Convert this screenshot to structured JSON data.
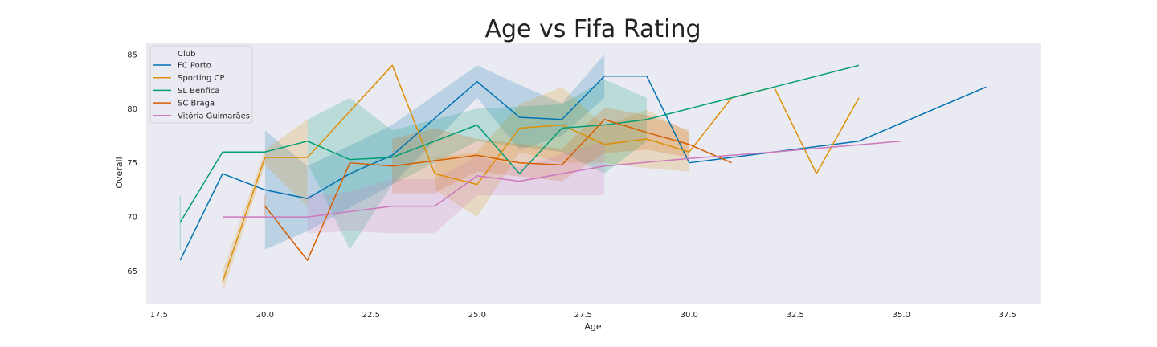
{
  "chart_data": {
    "type": "line",
    "title": "Age vs Fifa Rating",
    "xlabel": "Age",
    "ylabel": "Overall",
    "xlim": [
      17.2,
      38.3
    ],
    "ylim": [
      62,
      86.1
    ],
    "x_ticks": [
      17.5,
      20.0,
      22.5,
      25.0,
      27.5,
      30.0,
      32.5,
      35.0,
      37.5
    ],
    "y_ticks": [
      65,
      70,
      75,
      80,
      85
    ],
    "grid": false,
    "background": "#eaeaf2",
    "legend": {
      "title": "Club",
      "position": "top-left"
    },
    "series": [
      {
        "name": "FC Porto",
        "color": "#0173b2",
        "points": [
          [
            18,
            66
          ],
          [
            19,
            74
          ],
          [
            20,
            72.5
          ],
          [
            21,
            71.7
          ],
          [
            22,
            74
          ],
          [
            23,
            75.7
          ],
          [
            25,
            82.5
          ],
          [
            26,
            79.2
          ],
          [
            27,
            79
          ],
          [
            28,
            83
          ],
          [
            29,
            83
          ],
          [
            30,
            75
          ],
          [
            34,
            77
          ],
          [
            37,
            82
          ]
        ],
        "band": [
          [
            20,
            67,
            78
          ],
          [
            21,
            68.7,
            74.7
          ],
          [
            23,
            73,
            78.5
          ],
          [
            25,
            81,
            84
          ],
          [
            26,
            76.2,
            82.2
          ],
          [
            27,
            77.5,
            80.5
          ],
          [
            28,
            81,
            85
          ],
          [
            29,
            null,
            null
          ]
        ]
      },
      {
        "name": "Sporting CP",
        "color": "#de8f05",
        "points": [
          [
            19,
            64
          ],
          [
            20,
            75.5
          ],
          [
            21,
            75.5
          ],
          [
            23,
            84
          ],
          [
            24,
            74
          ],
          [
            25,
            73
          ],
          [
            26,
            78.2
          ],
          [
            27,
            78.5
          ],
          [
            28,
            76.7
          ],
          [
            29,
            77.2
          ],
          [
            30,
            76
          ],
          [
            31,
            81
          ],
          [
            32,
            82
          ],
          [
            33,
            74
          ],
          [
            34,
            81
          ]
        ],
        "band": [
          [
            19,
            63,
            65
          ],
          [
            20,
            74.8,
            76.2
          ],
          [
            21,
            71,
            79
          ],
          [
            24,
            72.5,
            75.5
          ],
          [
            25,
            70,
            76
          ],
          [
            26,
            76,
            80.4
          ],
          [
            27,
            75,
            82
          ],
          [
            28,
            75,
            78.4
          ],
          [
            29,
            74.5,
            79.9
          ],
          [
            30,
            74.2,
            77.8
          ]
        ]
      },
      {
        "name": "SL Benfica",
        "color": "#029e73",
        "points": [
          [
            18,
            69.5
          ],
          [
            19,
            76
          ],
          [
            20,
            76
          ],
          [
            21,
            77
          ],
          [
            22,
            75.3
          ],
          [
            23,
            75.5
          ],
          [
            25,
            78.5
          ],
          [
            26,
            74
          ],
          [
            27,
            78.2
          ],
          [
            28,
            78.5
          ],
          [
            29,
            79
          ],
          [
            31,
            81
          ],
          [
            32,
            82
          ],
          [
            34,
            84
          ]
        ],
        "band": [
          [
            18,
            67,
            72
          ],
          [
            21,
            75,
            79
          ],
          [
            22,
            67,
            81
          ],
          [
            23,
            73,
            78
          ],
          [
            25,
            77,
            80
          ],
          [
            27,
            76,
            80.4
          ],
          [
            28,
            74,
            82.7
          ],
          [
            29,
            77,
            81
          ]
        ]
      },
      {
        "name": "SC Braga",
        "color": "#d55e00",
        "points": [
          [
            20,
            71
          ],
          [
            21,
            66
          ],
          [
            22,
            75
          ],
          [
            23,
            74.7
          ],
          [
            25,
            75.7
          ],
          [
            26,
            75
          ],
          [
            27,
            74.8
          ],
          [
            28,
            79
          ],
          [
            29,
            77.8
          ],
          [
            30,
            76.7
          ],
          [
            31,
            75
          ]
        ],
        "band": [
          [
            20,
            70,
            72
          ],
          [
            23,
            72.2,
            77.2
          ],
          [
            24,
            72.2,
            78.2
          ],
          [
            25,
            74.2,
            77.2
          ],
          [
            27,
            73.3,
            76.3
          ],
          [
            28,
            75.9,
            80.1
          ],
          [
            29,
            76.2,
            79.4
          ],
          [
            30,
            75.5,
            78
          ]
        ]
      },
      {
        "name": "Vitória Guimarães",
        "color": "#cc78bc",
        "points": [
          [
            19,
            70
          ],
          [
            20,
            70
          ],
          [
            21,
            70
          ],
          [
            22,
            70.5
          ],
          [
            23,
            71
          ],
          [
            24,
            71
          ],
          [
            25,
            73.8
          ],
          [
            26,
            73.3
          ],
          [
            28,
            74.7
          ],
          [
            30,
            75.4
          ],
          [
            32,
            76
          ],
          [
            35,
            77
          ]
        ],
        "band": [
          [
            21,
            68.5,
            72
          ],
          [
            22,
            68.7,
            72.3
          ],
          [
            23,
            68.5,
            73.5
          ],
          [
            24,
            68.5,
            73.5
          ],
          [
            25,
            72,
            75.6
          ],
          [
            26,
            72,
            74.6
          ],
          [
            28,
            72,
            77
          ]
        ]
      }
    ]
  }
}
